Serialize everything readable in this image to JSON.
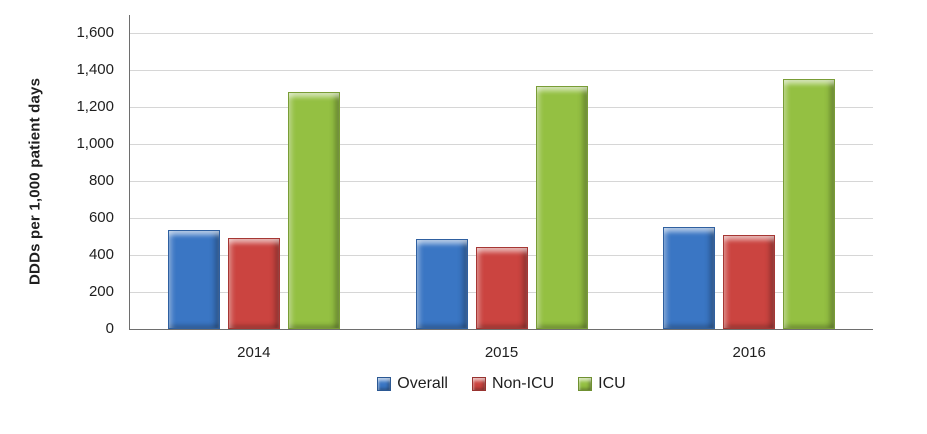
{
  "chart_data": {
    "type": "bar",
    "title": "",
    "categories": [
      "2014",
      "2015",
      "2016"
    ],
    "series": [
      {
        "name": "Overall",
        "color": "#3A76C4",
        "values": [
          535,
          485,
          550
        ]
      },
      {
        "name": "Non-ICU",
        "color": "#CB4440",
        "values": [
          490,
          445,
          510
        ]
      },
      {
        "name": "ICU",
        "color": "#94C042",
        "values": [
          1280,
          1315,
          1350
        ]
      }
    ],
    "xlabel": "",
    "ylabel": "DDDs per 1,000 patient days",
    "ylim": [
      0,
      1600
    ],
    "ytick_step": 200,
    "ytick_labels": [
      "0",
      "200",
      "400",
      "600",
      "800",
      "1,000",
      "1,200",
      "1,400",
      "1,600"
    ],
    "grid": true,
    "legend_position": "bottom"
  },
  "colors": {
    "axis": "#6E6E6E",
    "gridline": "#D6D6D6",
    "text": "#1F1F1F",
    "background": "#FFFFFF"
  }
}
